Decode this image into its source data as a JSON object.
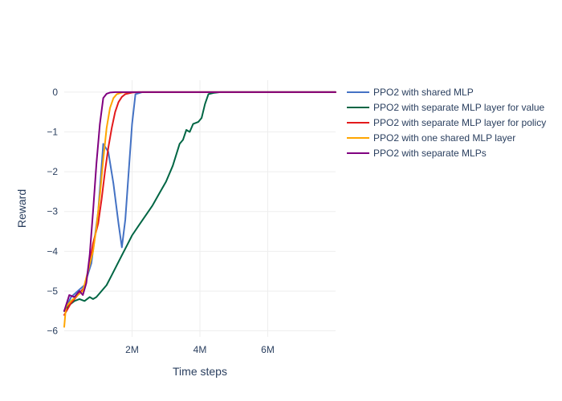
{
  "chart_data": {
    "type": "line",
    "title": "",
    "xlabel": "Time steps",
    "ylabel": "Reward",
    "xlim": [
      0,
      8000000
    ],
    "ylim": [
      -6.15,
      0.3
    ],
    "x_ticks": [
      2000000,
      4000000,
      6000000
    ],
    "x_tick_labels": [
      "2M",
      "4M",
      "6M"
    ],
    "y_ticks": [
      0,
      -1,
      -2,
      -3,
      -4,
      -5,
      -6
    ],
    "y_tick_labels": [
      "0",
      "−1",
      "−2",
      "−3",
      "−4",
      "−5",
      "−6"
    ],
    "grid": true,
    "legend_position": "right",
    "series": [
      {
        "name": "PPO2 with shared MLP",
        "color": "#4472c4",
        "x": [
          0,
          200000,
          400000,
          600000,
          800000,
          1000000,
          1150000,
          1300000,
          1450000,
          1600000,
          1700000,
          1800000,
          1900000,
          2000000,
          2100000,
          2300000,
          3000000,
          4000000,
          5000000,
          6000000,
          7000000,
          8000000
        ],
        "y": [
          -5.5,
          -5.15,
          -5.0,
          -4.85,
          -4.3,
          -3.0,
          -1.3,
          -1.5,
          -2.3,
          -3.3,
          -3.9,
          -3.2,
          -2.0,
          -0.8,
          -0.05,
          0,
          0,
          0,
          0,
          0,
          0,
          0
        ]
      },
      {
        "name": "PPO2 with separate MLP layer for value",
        "color": "#006644",
        "x": [
          0,
          150000,
          300000,
          450000,
          600000,
          750000,
          850000,
          950000,
          1100000,
          1250000,
          1400000,
          1550000,
          1700000,
          1850000,
          2000000,
          2200000,
          2400000,
          2600000,
          2800000,
          3000000,
          3200000,
          3400000,
          3500000,
          3600000,
          3700000,
          3800000,
          3950000,
          4050000,
          4150000,
          4250000,
          4400000,
          4600000,
          5000000,
          6000000,
          7000000,
          8000000
        ],
        "y": [
          -5.5,
          -5.35,
          -5.25,
          -5.2,
          -5.25,
          -5.15,
          -5.2,
          -5.15,
          -5.0,
          -4.85,
          -4.6,
          -4.35,
          -4.1,
          -3.85,
          -3.6,
          -3.35,
          -3.1,
          -2.85,
          -2.55,
          -2.25,
          -1.85,
          -1.3,
          -1.2,
          -0.95,
          -1.0,
          -0.8,
          -0.75,
          -0.65,
          -0.3,
          -0.05,
          -0.02,
          0,
          0,
          0,
          0,
          0
        ]
      },
      {
        "name": "PPO2 with separate MLP layer for policy",
        "color": "#e31a1c",
        "x": [
          0,
          200000,
          400000,
          600000,
          750000,
          850000,
          1000000,
          1100000,
          1200000,
          1300000,
          1400000,
          1500000,
          1600000,
          1700000,
          1800000,
          2000000,
          2200000,
          3000000,
          4000000,
          5000000,
          6000000,
          7000000,
          8000000
        ],
        "y": [
          -5.6,
          -5.3,
          -5.1,
          -4.9,
          -4.3,
          -3.8,
          -3.3,
          -2.7,
          -2.0,
          -1.4,
          -0.9,
          -0.5,
          -0.25,
          -0.12,
          -0.05,
          -0.01,
          0,
          0,
          0,
          0,
          0,
          0,
          0
        ]
      },
      {
        "name": "PPO2 with one shared MLP layer",
        "color": "#ffa500",
        "x": [
          0,
          50000,
          200000,
          400000,
          550000,
          700000,
          850000,
          950000,
          1050000,
          1150000,
          1250000,
          1350000,
          1450000,
          1550000,
          1700000,
          2000000,
          3000000,
          4000000,
          5000000,
          6000000,
          7000000,
          8000000
        ],
        "y": [
          -5.9,
          -5.4,
          -5.25,
          -5.1,
          -5.0,
          -4.5,
          -4.0,
          -3.4,
          -2.6,
          -1.7,
          -0.9,
          -0.4,
          -0.15,
          -0.05,
          -0.01,
          0,
          0,
          0,
          0,
          0,
          0,
          0
        ]
      },
      {
        "name": "PPO2 with separate MLPs",
        "color": "#800080",
        "x": [
          0,
          150000,
          300000,
          450000,
          550000,
          650000,
          750000,
          850000,
          950000,
          1050000,
          1150000,
          1250000,
          1350000,
          1500000,
          2000000,
          3000000,
          4000000,
          5000000,
          6000000,
          7000000,
          8000000
        ],
        "y": [
          -5.5,
          -5.1,
          -5.15,
          -5.0,
          -5.1,
          -4.8,
          -4.1,
          -3.0,
          -1.8,
          -0.8,
          -0.15,
          -0.04,
          -0.01,
          0,
          0,
          0,
          0,
          0,
          0,
          0,
          0
        ]
      }
    ]
  }
}
